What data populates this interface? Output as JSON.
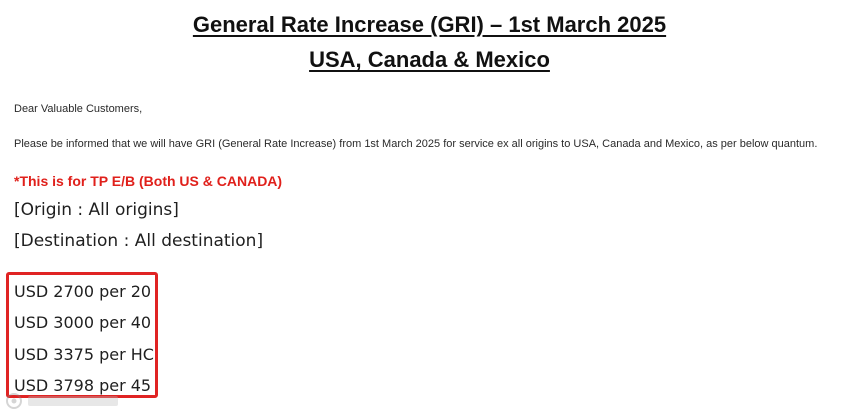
{
  "header": {
    "title_line1": "General Rate Increase (GRI) – 1st March 2025",
    "title_line2": "USA, Canada & Mexico"
  },
  "body": {
    "greeting": "Dear Valuable Customers,",
    "notice": "Please be informed that we will have GRI (General Rate Increase) from 1st March 2025 for service ex all origins to USA, Canada and Mexico, as per below quantum.",
    "scope_note": "*This is for TP E/B (Both US & CANADA)",
    "origin": "[Origin : All origins]",
    "destination": "[Destination : All destination]"
  },
  "rates": [
    "USD 2700 per 20",
    "USD 3000 per 40",
    "USD 3375 per HC",
    "USD 3798 per 45"
  ],
  "colors": {
    "highlight_border": "#e02323",
    "note_text": "#e0201b"
  },
  "watermark": {
    "icon": "watermark-logo-icon"
  }
}
